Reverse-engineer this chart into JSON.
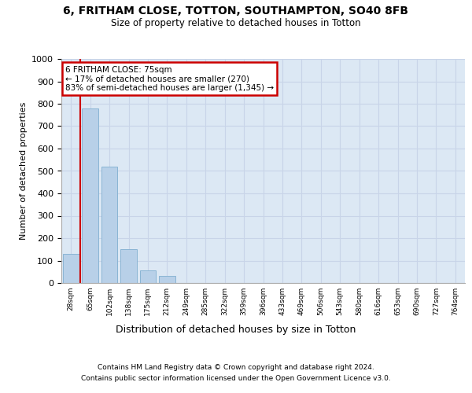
{
  "title": "6, FRITHAM CLOSE, TOTTON, SOUTHAMPTON, SO40 8FB",
  "subtitle": "Size of property relative to detached houses in Totton",
  "xlabel": "Distribution of detached houses by size in Totton",
  "ylabel": "Number of detached properties",
  "footer1": "Contains HM Land Registry data © Crown copyright and database right 2024.",
  "footer2": "Contains public sector information licensed under the Open Government Licence v3.0.",
  "bin_labels": [
    "28sqm",
    "65sqm",
    "102sqm",
    "138sqm",
    "175sqm",
    "212sqm",
    "249sqm",
    "285sqm",
    "322sqm",
    "359sqm",
    "396sqm",
    "433sqm",
    "469sqm",
    "506sqm",
    "543sqm",
    "580sqm",
    "616sqm",
    "653sqm",
    "690sqm",
    "727sqm",
    "764sqm"
  ],
  "bar_heights": [
    130,
    780,
    520,
    150,
    55,
    30,
    0,
    0,
    0,
    0,
    0,
    0,
    0,
    0,
    0,
    0,
    0,
    0,
    0,
    0,
    0
  ],
  "bar_color": "#b8d0e8",
  "bar_edgecolor": "#8ab4d4",
  "grid_color": "#c8d4e8",
  "background_color": "#dce8f4",
  "red_line_color": "#cc0000",
  "annotation_text": "6 FRITHAM CLOSE: 75sqm\n← 17% of detached houses are smaller (270)\n83% of semi-detached houses are larger (1,345) →",
  "annotation_box_color": "#ffffff",
  "annotation_border_color": "#cc0000",
  "ylim": [
    0,
    1000
  ],
  "yticks": [
    0,
    100,
    200,
    300,
    400,
    500,
    600,
    700,
    800,
    900,
    1000
  ]
}
